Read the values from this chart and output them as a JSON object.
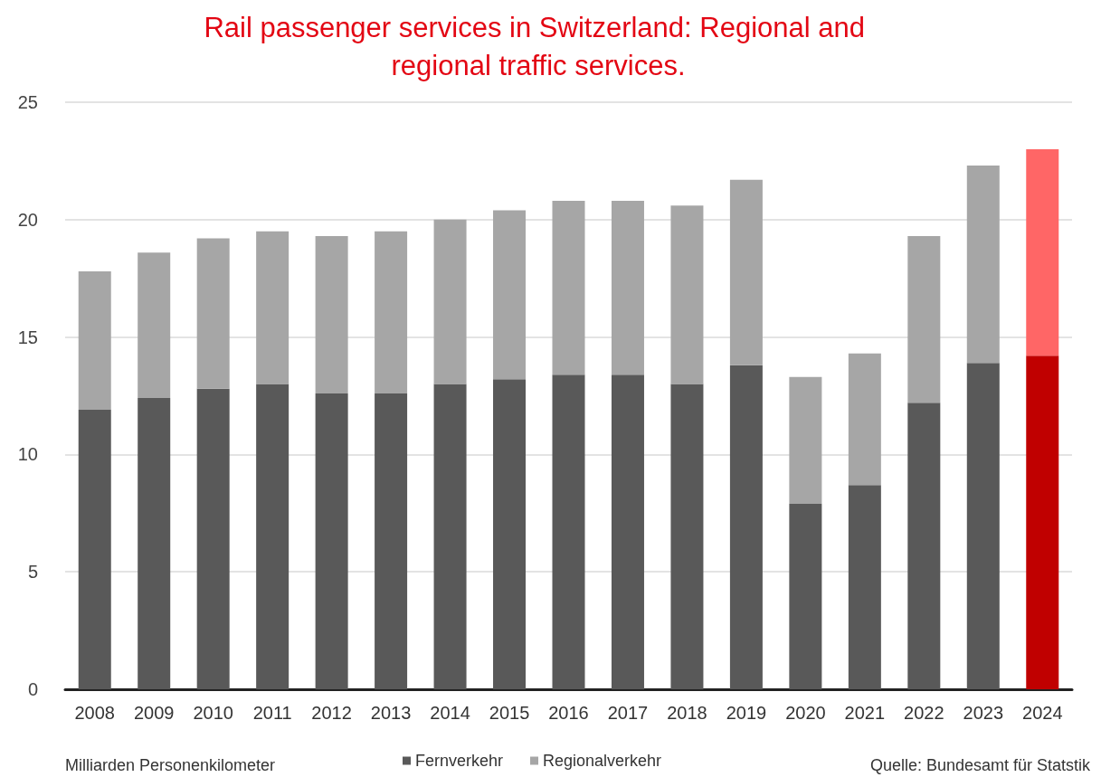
{
  "chart_data": {
    "type": "bar",
    "title": "Rail passenger services in Switzerland: Regional and regional traffic services.",
    "categories": [
      "2008",
      "2009",
      "2010",
      "2011",
      "2012",
      "2013",
      "2014",
      "2015",
      "2016",
      "2017",
      "2018",
      "2019",
      "2020",
      "2021",
      "2022",
      "2023",
      "2024"
    ],
    "stacked": true,
    "series": [
      {
        "name": "Fernverkehr",
        "color": "#595959",
        "colors": [
          "#595959",
          "#595959",
          "#595959",
          "#595959",
          "#595959",
          "#595959",
          "#595959",
          "#595959",
          "#595959",
          "#595959",
          "#595959",
          "#595959",
          "#595959",
          "#595959",
          "#595959",
          "#595959",
          "#c00000"
        ],
        "values": [
          11.9,
          12.4,
          12.8,
          13.0,
          12.6,
          12.6,
          13.0,
          13.2,
          13.4,
          13.4,
          13.0,
          13.8,
          7.9,
          8.7,
          12.2,
          13.9,
          14.2
        ]
      },
      {
        "name": "Regionalverkehr",
        "color": "#a6a6a6",
        "colors": [
          "#a6a6a6",
          "#a6a6a6",
          "#a6a6a6",
          "#a6a6a6",
          "#a6a6a6",
          "#a6a6a6",
          "#a6a6a6",
          "#a6a6a6",
          "#a6a6a6",
          "#a6a6a6",
          "#a6a6a6",
          "#a6a6a6",
          "#a6a6a6",
          "#a6a6a6",
          "#a6a6a6",
          "#a6a6a6",
          "#ff6666"
        ],
        "values": [
          5.9,
          6.2,
          6.4,
          6.5,
          6.7,
          6.9,
          7.0,
          7.2,
          7.4,
          7.4,
          7.6,
          7.9,
          5.4,
          5.6,
          7.1,
          8.4,
          8.8
        ]
      }
    ],
    "ylim": [
      0,
      25
    ],
    "yticks": [
      0,
      5,
      10,
      15,
      20,
      25
    ],
    "annotations": [
      "Milliarden Personenkilometer",
      "Quelle: Bundesamt für Statstik"
    ],
    "grid": "y",
    "legend": "bottom"
  }
}
